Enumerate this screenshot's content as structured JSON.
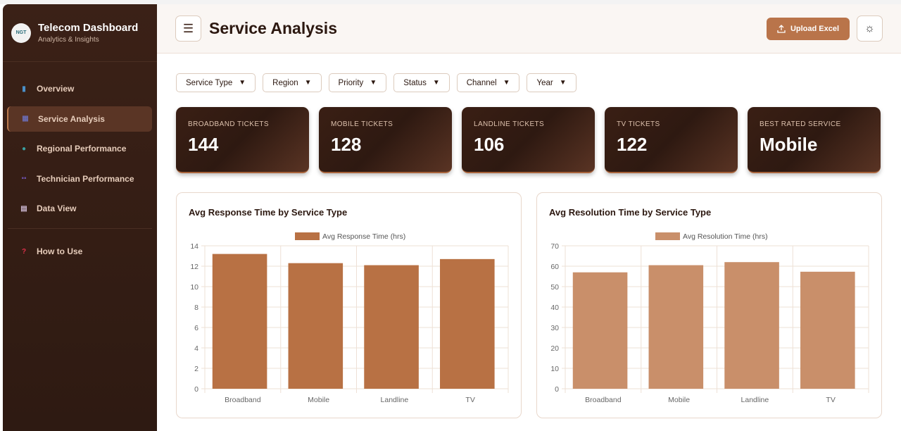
{
  "sidebar": {
    "logo_text": "NGT",
    "title": "Telecom Dashboard",
    "subtitle": "Analytics & Insights",
    "items": [
      {
        "label": "Overview",
        "icon": "bar-chart-icon",
        "color": "#4a90c8"
      },
      {
        "label": "Service Analysis",
        "icon": "building-icon",
        "color": "#6b6bb0",
        "active": true
      },
      {
        "label": "Regional Performance",
        "icon": "globe-icon",
        "color": "#3aa0a0"
      },
      {
        "label": "Technician Performance",
        "icon": "users-icon",
        "color": "#6a4ea0"
      },
      {
        "label": "Data View",
        "icon": "clipboard-icon",
        "color": "#c9b5ce"
      }
    ],
    "help": {
      "label": "How to Use",
      "icon": "question-icon",
      "color": "#e0304a"
    }
  },
  "header": {
    "title": "Service Analysis",
    "upload_label": "Upload Excel"
  },
  "filters": [
    "Service Type",
    "Region",
    "Priority",
    "Status",
    "Channel",
    "Year"
  ],
  "kpis": [
    {
      "label": "BROADBAND TICKETS",
      "value": "144"
    },
    {
      "label": "MOBILE TICKETS",
      "value": "128"
    },
    {
      "label": "LANDLINE TICKETS",
      "value": "106"
    },
    {
      "label": "TV TICKETS",
      "value": "122"
    },
    {
      "label": "BEST RATED SERVICE",
      "value": "Mobile"
    }
  ],
  "chart_data": [
    {
      "type": "bar",
      "title": "Avg Response Time by Service Type",
      "categories": [
        "Broadband",
        "Mobile",
        "Landline",
        "TV"
      ],
      "series": [
        {
          "name": "Avg Response Time (hrs)",
          "values": [
            13.2,
            12.3,
            12.1,
            12.7
          ],
          "color": "#b87144"
        }
      ],
      "ylim": [
        0,
        14
      ],
      "yticks": [
        0,
        2,
        4,
        6,
        8,
        10,
        12,
        14
      ],
      "grid": true,
      "legend": "top"
    },
    {
      "type": "bar",
      "title": "Avg Resolution Time by Service Type",
      "categories": [
        "Broadband",
        "Mobile",
        "Landline",
        "TV"
      ],
      "series": [
        {
          "name": "Avg Resolution Time (hrs)",
          "values": [
            57,
            60.5,
            62,
            57.3
          ],
          "color": "#c98f6a"
        }
      ],
      "ylim": [
        0,
        70
      ],
      "yticks": [
        0,
        10,
        20,
        30,
        40,
        50,
        60,
        70
      ],
      "grid": true,
      "legend": "top"
    }
  ]
}
